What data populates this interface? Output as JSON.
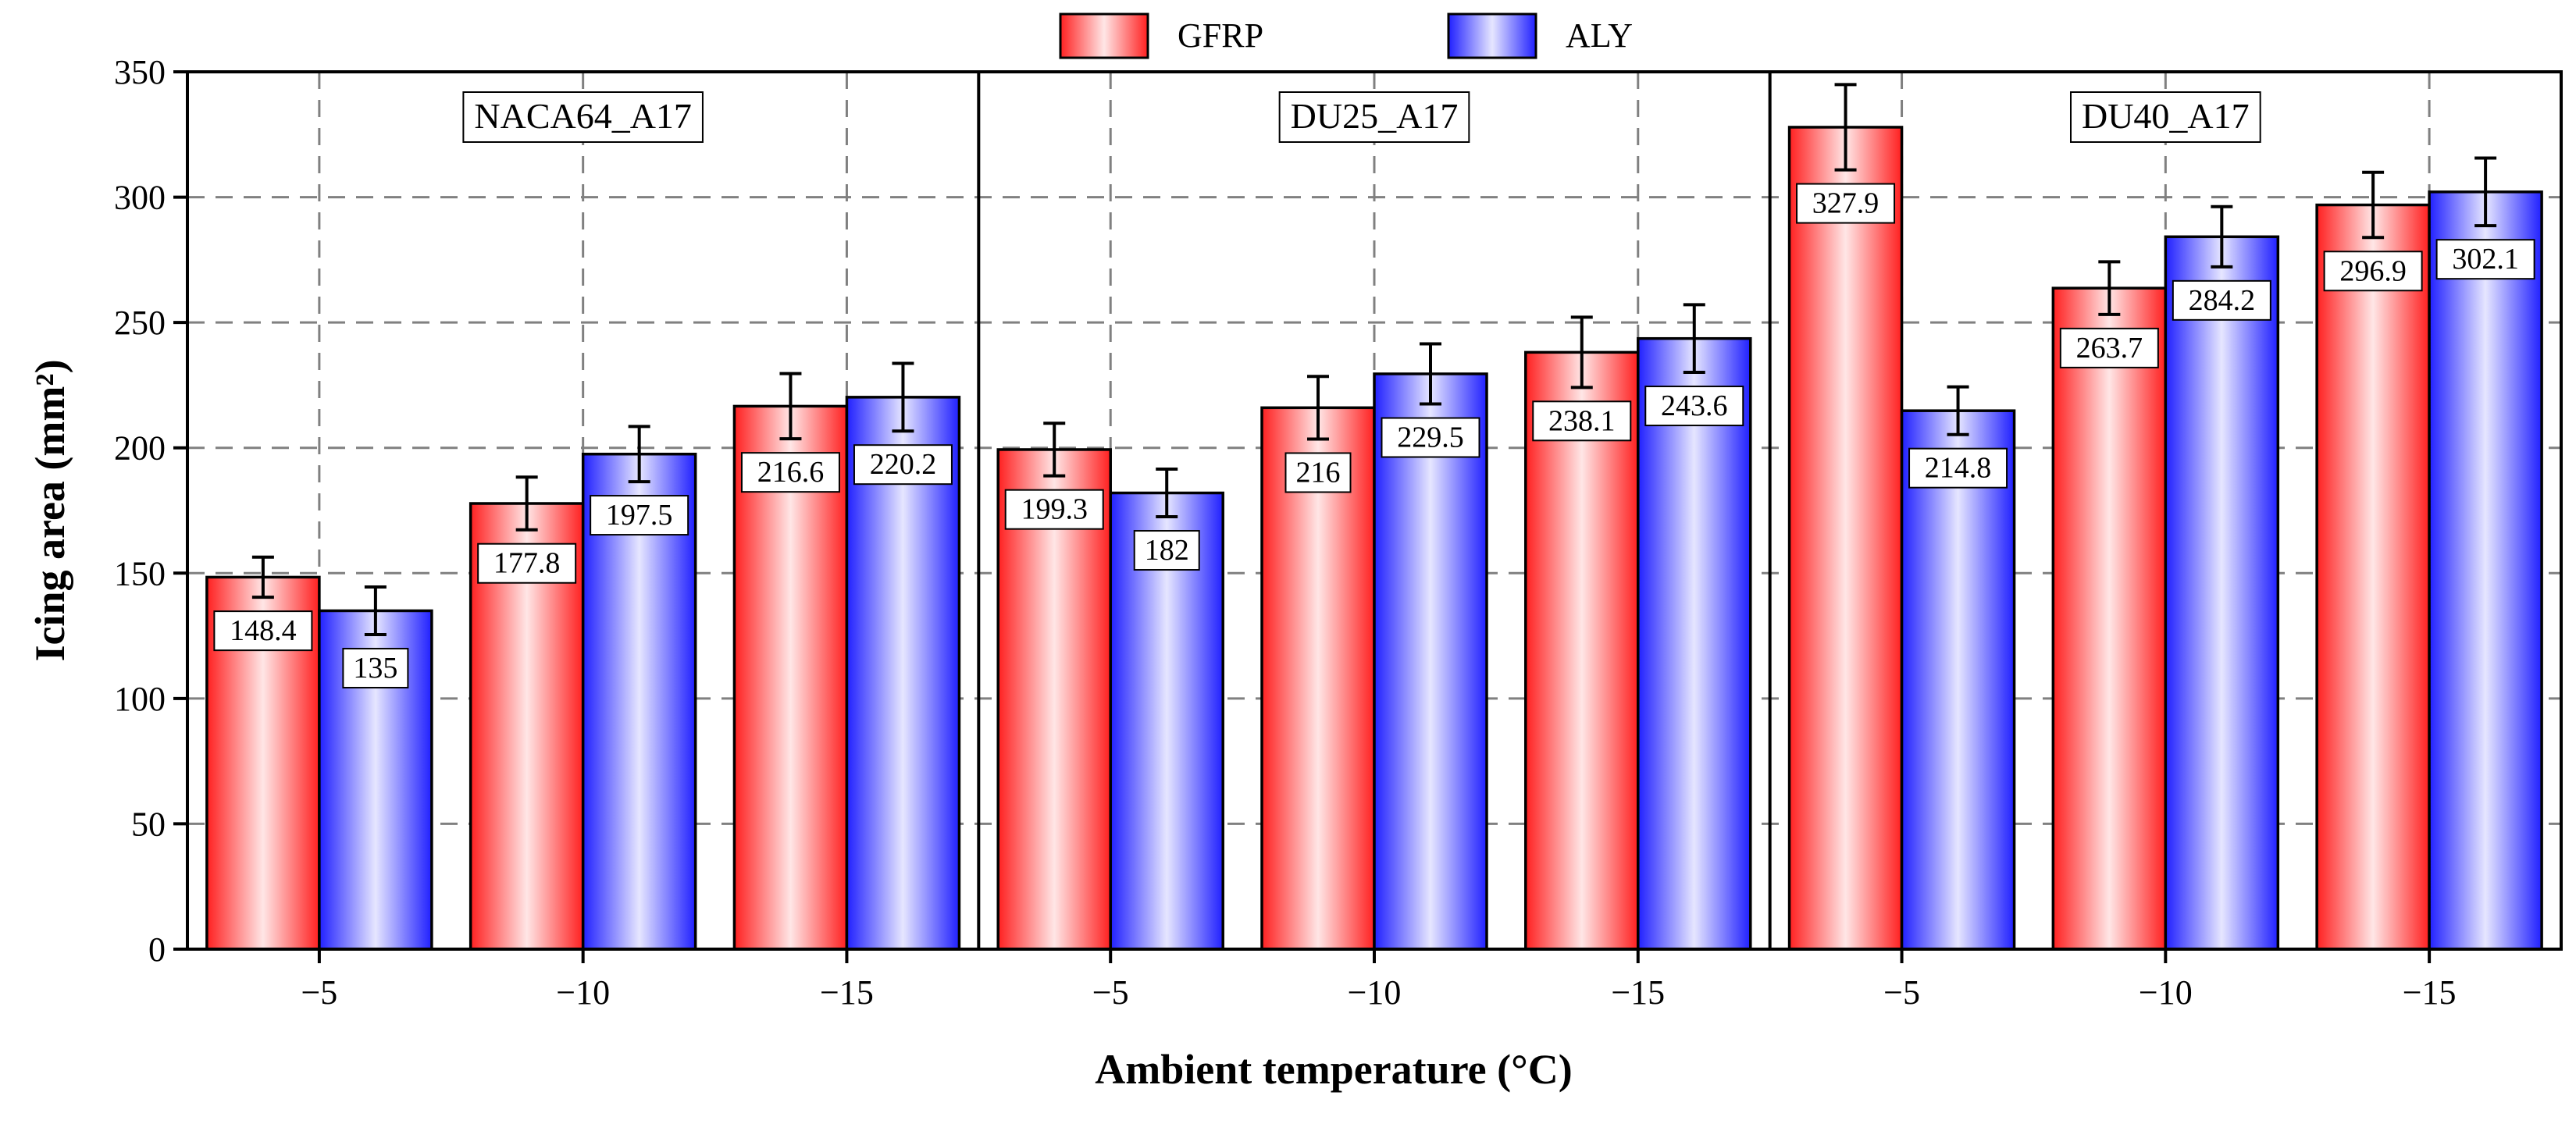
{
  "chart_data": {
    "type": "bar",
    "xlabel": "Ambient temperature (°C)",
    "ylabel": "Icing area (mm²)",
    "ylim": [
      0,
      350
    ],
    "yticks": [
      0,
      50,
      100,
      150,
      200,
      250,
      300,
      350
    ],
    "grid": true,
    "legend": {
      "placement": "top-center",
      "entries": [
        "GFRP",
        "ALY"
      ]
    },
    "colors": {
      "GFRP": "#ff2a2a",
      "ALY": "#2626ff"
    },
    "panels": [
      {
        "label": "NACA64_A17",
        "categories": [
          "−5",
          "−10",
          "−15"
        ],
        "series": [
          {
            "name": "GFRP",
            "values": [
              148.4,
              177.8,
              216.6
            ],
            "errors": [
              8,
              10.5,
              13
            ],
            "labels": [
              "148.4",
              "177.8",
              "216.6"
            ]
          },
          {
            "name": "ALY",
            "values": [
              135,
              197.5,
              220.2
            ],
            "errors": [
              9.5,
              11,
              13.5
            ],
            "labels": [
              "135",
              "197.5",
              "220.2"
            ]
          }
        ]
      },
      {
        "label": "DU25_A17",
        "categories": [
          "−5",
          "−10",
          "−15"
        ],
        "series": [
          {
            "name": "GFRP",
            "values": [
              199.3,
              216,
              238.1
            ],
            "errors": [
              10.5,
              12.5,
              14
            ],
            "labels": [
              "199.3",
              "216",
              "238.1"
            ]
          },
          {
            "name": "ALY",
            "values": [
              182,
              229.5,
              243.6
            ],
            "errors": [
              9.5,
              12,
              13.5
            ],
            "labels": [
              "182",
              "229.5",
              "243.6"
            ]
          }
        ]
      },
      {
        "label": "DU40_A17",
        "categories": [
          "−5",
          "−10",
          "−15"
        ],
        "series": [
          {
            "name": "GFRP",
            "values": [
              327.9,
              263.7,
              296.9
            ],
            "errors": [
              17,
              10.5,
              13
            ],
            "labels": [
              "327.9",
              "263.7",
              "296.9"
            ]
          },
          {
            "name": "ALY",
            "values": [
              214.8,
              284.2,
              302.1
            ],
            "errors": [
              9.5,
              12,
              13.5
            ],
            "labels": [
              "214.8",
              "284.2",
              "302.1"
            ]
          }
        ]
      }
    ]
  }
}
